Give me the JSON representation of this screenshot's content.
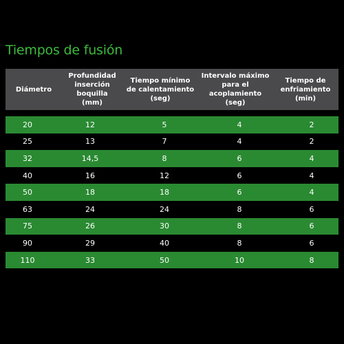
{
  "title": "Tiempos de fusión",
  "colors": {
    "accent": "#3dbb3d",
    "header_bg": "#4a4a4c",
    "row_green": "#2a8a32",
    "background": "#000000"
  },
  "table": {
    "headers": [
      "Diámetro",
      "Profundidad\ninserción boquilla\n(mm)",
      "Tiempo mínimo\nde calentamiento\n(seg)",
      "Intervalo máximo\npara el acoplamiento\n(seg)",
      "Tiempo de\nenfriamiento\n(min)"
    ],
    "rows": [
      [
        "20",
        "12",
        "5",
        "4",
        "2"
      ],
      [
        "25",
        "13",
        "7",
        "4",
        "2"
      ],
      [
        "32",
        "14,5",
        "8",
        "6",
        "4"
      ],
      [
        "40",
        "16",
        "12",
        "6",
        "4"
      ],
      [
        "50",
        "18",
        "18",
        "6",
        "4"
      ],
      [
        "63",
        "24",
        "24",
        "8",
        "6"
      ],
      [
        "75",
        "26",
        "30",
        "8",
        "6"
      ],
      [
        "90",
        "29",
        "40",
        "8",
        "6"
      ],
      [
        "110",
        "33",
        "50",
        "10",
        "8"
      ]
    ]
  }
}
